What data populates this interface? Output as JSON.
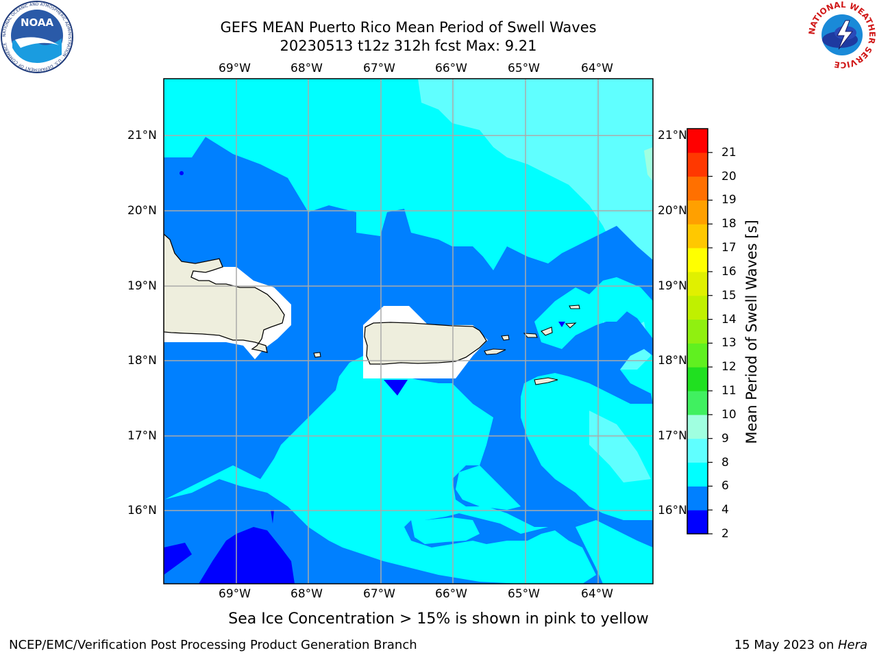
{
  "header": {
    "title_line1": "GEFS MEAN Puerto Rico Mean Period of Swell Waves",
    "title_line2": "20230513 t12z 312h fcst   Max: 9.21"
  },
  "logos": {
    "noaa_text": "NOAA",
    "noaa_ring_text": "NATIONAL OCEANIC AND ATMOSPHERIC ADMINISTRATION · U.S. DEPARTMENT OF COMMERCE",
    "nws_ring_text": "NATIONAL WEATHER SERVICE"
  },
  "map": {
    "lon_labels": [
      "69°W",
      "68°W",
      "67°W",
      "66°W",
      "65°W",
      "64°W"
    ],
    "lat_labels": [
      "21°N",
      "20°N",
      "19°N",
      "18°N",
      "17°N",
      "16°N"
    ],
    "region": "Puerto Rico",
    "lon_range": [
      -70.0,
      -63.25
    ],
    "lat_range": [
      15.0,
      21.75
    ],
    "gridlines": true
  },
  "colorbar": {
    "label": "Mean Period of Swell Waves [s]",
    "ticks": [
      "2",
      "4",
      "6",
      "8",
      "9",
      "10",
      "11",
      "12",
      "13",
      "14",
      "15",
      "16",
      "17",
      "18",
      "19",
      "20",
      "21"
    ],
    "colors": [
      "#0000ff",
      "#0080ff",
      "#00ffff",
      "#60ffff",
      "#a0ffe0",
      "#40f060",
      "#20e020",
      "#60f020",
      "#90f010",
      "#c0f000",
      "#e0f000",
      "#ffff00",
      "#ffc800",
      "#ffa000",
      "#ff7000",
      "#ff3800",
      "#ff0000"
    ]
  },
  "caption": "Sea Ice Concentration > 15% is shown in pink to yellow",
  "footer": {
    "left": "NCEP/EMC/Verification Post Processing Product Generation Branch",
    "right_prefix": "15 May 2023 on ",
    "right_host": "Hera"
  }
}
